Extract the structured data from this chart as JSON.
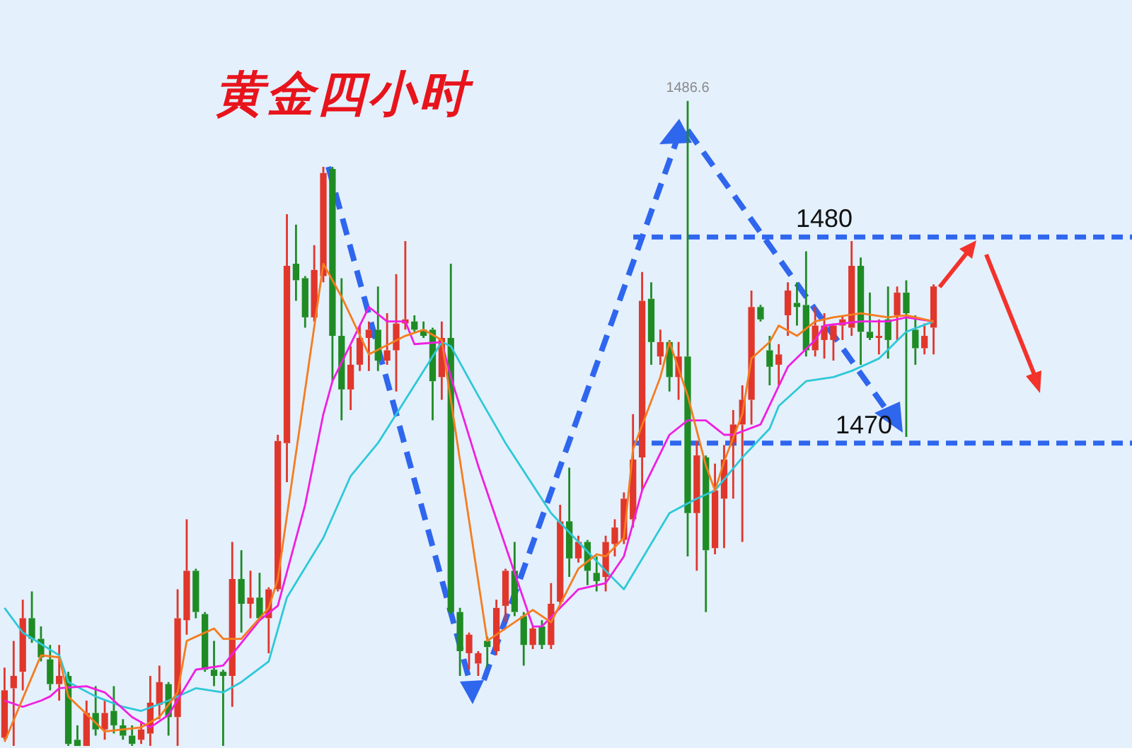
{
  "chart_data": {
    "type": "candlestick",
    "title": "黄金四小时",
    "categories": [
      null,
      null,
      null,
      null,
      null,
      null,
      null,
      null,
      null,
      null,
      null,
      null,
      null,
      null,
      null,
      null,
      null,
      null,
      null,
      null,
      null,
      null,
      null,
      null,
      null,
      null,
      null,
      null,
      null,
      null,
      null,
      null,
      null,
      null,
      null,
      null,
      null,
      null,
      null,
      null,
      null,
      null,
      null,
      null,
      null,
      null,
      null,
      null,
      null,
      null,
      null,
      null,
      null,
      null,
      null,
      null,
      null,
      null,
      null,
      null,
      null,
      null,
      null,
      null,
      null,
      null,
      null,
      null,
      null,
      null,
      null,
      null,
      null,
      null,
      null,
      null,
      null,
      null,
      null,
      null,
      null,
      null,
      null,
      null,
      null,
      null,
      null,
      null,
      null,
      null,
      null,
      null,
      null,
      null,
      null,
      null,
      null,
      null,
      null,
      null,
      null,
      null,
      null
    ],
    "ohlc": [
      [
        1455.7,
        1459.1,
        1455.6,
        1458.0
      ],
      [
        1458.1,
        1460.4,
        1455.3,
        1458.7
      ],
      [
        1458.9,
        1462.4,
        1458.0,
        1461.5
      ],
      [
        1461.5,
        1462.8,
        1460.3,
        1460.5
      ],
      [
        1460.5,
        1461.1,
        1459.4,
        1459.6
      ],
      [
        1459.5,
        1460.2,
        1458.0,
        1458.3
      ],
      [
        1458.3,
        1460.2,
        1457.5,
        1458.7
      ],
      [
        1458.7,
        1458.9,
        1455.3,
        1455.4
      ],
      [
        1455.6,
        1456.3,
        1455.3,
        1455.3
      ],
      [
        1455.3,
        1457.5,
        1455.3,
        1456.9
      ],
      [
        1456.9,
        1458.2,
        1455.8,
        1456.1
      ],
      [
        1456.1,
        1457.5,
        1455.6,
        1456.9
      ],
      [
        1457.0,
        1458.2,
        1455.9,
        1456.3
      ],
      [
        1456.3,
        1456.6,
        1455.6,
        1455.8
      ],
      [
        1455.8,
        1456.3,
        1455.3,
        1455.4
      ],
      [
        1455.6,
        1456.5,
        1455.4,
        1456.1
      ],
      [
        1455.9,
        1458.7,
        1455.3,
        1457.4
      ],
      [
        1457.3,
        1459.2,
        1456.6,
        1458.4
      ],
      [
        1458.3,
        1458.4,
        1455.8,
        1456.7
      ],
      [
        1456.7,
        1462.9,
        1455.3,
        1461.5
      ],
      [
        1461.4,
        1466.3,
        1460.7,
        1463.8
      ],
      [
        1463.8,
        1463.9,
        1461.5,
        1461.8
      ],
      [
        1461.7,
        1461.8,
        1458.9,
        1459.0
      ],
      [
        1459.0,
        1460.4,
        1458.2,
        1458.7
      ],
      [
        1458.9,
        1459.0,
        1455.3,
        1458.7
      ],
      [
        1458.7,
        1465.2,
        1457.2,
        1463.4
      ],
      [
        1463.4,
        1464.8,
        1460.8,
        1462.2
      ],
      [
        1462.2,
        1463.8,
        1461.5,
        1462.5
      ],
      [
        1462.5,
        1463.7,
        1461.4,
        1461.5
      ],
      [
        1461.5,
        1463.0,
        1459.8,
        1462.9
      ],
      [
        1462.9,
        1470.4,
        1462.8,
        1470.1
      ],
      [
        1470.0,
        1481.1,
        1468.1,
        1478.6
      ],
      [
        1478.7,
        1480.6,
        1476.9,
        1477.9
      ],
      [
        1478.0,
        1478.1,
        1475.6,
        1476.1
      ],
      [
        1476.1,
        1479.6,
        1475.9,
        1478.4
      ],
      [
        1478.1,
        1483.4,
        1477.8,
        1483.1
      ],
      [
        1483.3,
        1483.4,
        1473.0,
        1475.2
      ],
      [
        1475.2,
        1478.0,
        1471.1,
        1472.6
      ],
      [
        1472.6,
        1474.7,
        1471.6,
        1473.8
      ],
      [
        1473.8,
        1475.7,
        1473.5,
        1475.1
      ],
      [
        1475.1,
        1475.9,
        1473.5,
        1475.5
      ],
      [
        1475.5,
        1477.6,
        1473.5,
        1474.0
      ],
      [
        1474.0,
        1476.3,
        1473.8,
        1474.5
      ],
      [
        1474.5,
        1478.2,
        1472.5,
        1475.8
      ],
      [
        1475.8,
        1479.8,
        1475.5,
        1476.0
      ],
      [
        1475.9,
        1476.2,
        1475.4,
        1475.5
      ],
      [
        1475.5,
        1475.9,
        1475.1,
        1475.2
      ],
      [
        1475.5,
        1475.6,
        1471.1,
        1473.0
      ],
      [
        1473.2,
        1475.9,
        1472.1,
        1475.1
      ],
      [
        1475.1,
        1478.7,
        1461.7,
        1461.8
      ],
      [
        1461.8,
        1462.0,
        1458.7,
        1459.9
      ],
      [
        1459.8,
        1460.8,
        1459.0,
        1460.7
      ],
      [
        1459.3,
        1459.9,
        1458.7,
        1459.8
      ],
      [
        1460.4,
        1460.6,
        1459.1,
        1460.1
      ],
      [
        1459.9,
        1462.4,
        1459.7,
        1462.0
      ],
      [
        1462.1,
        1463.9,
        1461.3,
        1463.8
      ],
      [
        1463.8,
        1465.2,
        1461.6,
        1461.8
      ],
      [
        1461.6,
        1461.8,
        1459.2,
        1460.2
      ],
      [
        1460.2,
        1461.1,
        1460.0,
        1461.0
      ],
      [
        1461.1,
        1461.4,
        1460.0,
        1460.2
      ],
      [
        1460.2,
        1463.2,
        1460.0,
        1462.2
      ],
      [
        1462.3,
        1467.0,
        1462.2,
        1466.2
      ],
      [
        1466.2,
        1468.8,
        1463.5,
        1464.4
      ],
      [
        1464.4,
        1465.5,
        1464.2,
        1465.2
      ],
      [
        1465.2,
        1465.3,
        1463.1,
        1463.8
      ],
      [
        1463.7,
        1464.5,
        1462.8,
        1463.3
      ],
      [
        1463.5,
        1465.5,
        1462.8,
        1465.2
      ],
      [
        1465.1,
        1466.3,
        1464.5,
        1465.9
      ],
      [
        1465.3,
        1467.6,
        1465.1,
        1467.3
      ],
      [
        1466.3,
        1471.4,
        1465.9,
        1469.2
      ],
      [
        1469.3,
        1478.3,
        1467.7,
        1476.9
      ],
      [
        1477.0,
        1477.8,
        1473.8,
        1474.9
      ],
      [
        1474.2,
        1475.5,
        1473.8,
        1474.9
      ],
      [
        1474.9,
        1475.0,
        1472.5,
        1473.2
      ],
      [
        1473.2,
        1474.9,
        1472.1,
        1474.2
      ],
      [
        1474.2,
        1486.6,
        1464.5,
        1466.6
      ],
      [
        1466.6,
        1470.1,
        1463.8,
        1469.4
      ],
      [
        1469.3,
        1469.4,
        1461.8,
        1464.8
      ],
      [
        1464.9,
        1469.0,
        1464.6,
        1467.7
      ],
      [
        1467.3,
        1469.9,
        1464.9,
        1469.2
      ],
      [
        1470.0,
        1471.6,
        1467.3,
        1470.9
      ],
      [
        1470.9,
        1472.8,
        1465.2,
        1472.1
      ],
      [
        1472.1,
        1477.4,
        1470.9,
        1476.6
      ],
      [
        1476.6,
        1476.7,
        1475.9,
        1476.0
      ],
      [
        1474.5,
        1475.2,
        1472.8,
        1473.7
      ],
      [
        1473.8,
        1474.8,
        1472.8,
        1474.3
      ],
      [
        1476.2,
        1477.8,
        1475.2,
        1477.4
      ],
      [
        1476.8,
        1477.8,
        1475.7,
        1476.6
      ],
      [
        1476.7,
        1479.3,
        1474.2,
        1474.5
      ],
      [
        1474.5,
        1476.6,
        1474.2,
        1475.7
      ],
      [
        1475.0,
        1476.3,
        1474.1,
        1475.7
      ],
      [
        1475.0,
        1475.8,
        1474.0,
        1475.7
      ],
      [
        1475.7,
        1476.2,
        1475.0,
        1476.0
      ],
      [
        1475.6,
        1479.8,
        1475.2,
        1478.6
      ],
      [
        1478.6,
        1479.0,
        1473.8,
        1475.4
      ],
      [
        1475.4,
        1477.3,
        1475.0,
        1475.1
      ],
      [
        1475.1,
        1476.0,
        1474.3,
        1475.2
      ],
      [
        1476.0,
        1477.6,
        1474.1,
        1475.0
      ],
      [
        1476.2,
        1477.6,
        1475.0,
        1477.3
      ],
      [
        1477.3,
        1477.9,
        1470.3,
        1476.3
      ],
      [
        1475.5,
        1476.2,
        1473.8,
        1474.6
      ],
      [
        1474.6,
        1475.8,
        1474.3,
        1475.2
      ],
      [
        1475.6,
        1477.7,
        1474.3,
        1477.6
      ]
    ],
    "colors": [
      "#e0362b",
      "#e0362b",
      "#e0362b",
      "#1f8b24",
      "#1f8b24",
      "#1f8b24",
      "#e0362b",
      "#1f8b24",
      "#1f8b24",
      "#e0362b",
      "#1f8b24",
      "#e0362b",
      "#1f8b24",
      "#1f8b24",
      "#1f8b24",
      "#e0362b",
      "#e0362b",
      "#e0362b",
      "#1f8b24",
      "#e0362b",
      "#e0362b",
      "#1f8b24",
      "#1f8b24",
      "#1f8b24",
      "#1f8b24",
      "#e0362b",
      "#1f8b24",
      "#e0362b",
      "#1f8b24",
      "#e0362b",
      "#e0362b",
      "#e0362b",
      "#1f8b24",
      "#1f8b24",
      "#e0362b",
      "#e0362b",
      "#1f8b24",
      "#1f8b24",
      "#e0362b",
      "#e0362b",
      "#e0362b",
      "#1f8b24",
      "#e0362b",
      "#e0362b",
      "#e0362b",
      "#1f8b24",
      "#1f8b24",
      "#1f8b24",
      "#e0362b",
      "#1f8b24",
      "#1f8b24",
      "#e0362b",
      "#e0362b",
      "#1f8b24",
      "#e0362b",
      "#e0362b",
      "#1f8b24",
      "#1f8b24",
      "#e0362b",
      "#1f8b24",
      "#e0362b",
      "#e0362b",
      "#1f8b24",
      "#e0362b",
      "#1f8b24",
      "#1f8b24",
      "#e0362b",
      "#e0362b",
      "#e0362b",
      "#e0362b",
      "#e0362b",
      "#1f8b24",
      "#e0362b",
      "#1f8b24",
      "#e0362b",
      "#1f8b24",
      "#e0362b",
      "#1f8b24",
      "#e0362b",
      "#e0362b",
      "#e0362b",
      "#e0362b",
      "#e0362b",
      "#1f8b24",
      "#1f8b24",
      "#e0362b",
      "#e0362b",
      "#1f8b24",
      "#1f8b24",
      "#e0362b",
      "#e0362b",
      "#e0362b",
      "#e0362b",
      "#e0362b",
      "#1f8b24",
      "#1f8b24",
      "#e0362b",
      "#1f8b24",
      "#e0362b",
      "#1f8b24",
      "#1f8b24",
      "#e0362b",
      "#e0362b"
    ],
    "series": [
      {
        "type": "line",
        "color": "#f57c1f",
        "values": [
          1455.5,
          null,
          null,
          null,
          1459.7,
          null,
          1459.6,
          1457.7,
          null,
          null,
          null,
          1456.0,
          null,
          null,
          null,
          1456.2,
          null,
          1456.7,
          null,
          1457.9,
          1460.4,
          1460.6,
          null,
          1461.0,
          1460.5,
          null,
          1460.5,
          null,
          null,
          1462.0,
          1463.4,
          null,
          null,
          null,
          null,
          1478.7,
          null,
          1477.1,
          null,
          null,
          1474.3,
          null,
          null,
          null,
          1475.2,
          null,
          1475.5,
          null,
          1475.0,
          null,
          null,
          null,
          null,
          1460.4,
          null,
          null,
          null,
          1461.6,
          1461.9,
          null,
          1461.3,
          null,
          null,
          1463.9,
          null,
          1464.6,
          1464.5,
          null,
          1465.4,
          1469.7,
          null,
          null,
          1473.2,
          1474.9,
          null,
          1472.3,
          null,
          1468.9,
          1467.7,
          1469.1,
          null,
          1471.4,
          1474.1,
          null,
          1474.9,
          1475.7,
          null,
          1475.2,
          null,
          1475.9,
          null,
          1476.1,
          null,
          null,
          1476.3,
          null,
          null,
          1476.1,
          null,
          1476.2,
          null,
          null,
          1475.9
        ]
      },
      {
        "type": "line",
        "color": "#f01ee0",
        "values": [
          1457.5,
          null,
          1457.2,
          null,
          1457.5,
          1457.7,
          1458.1,
          null,
          null,
          1458.2,
          null,
          1457.9,
          null,
          null,
          1456.7,
          null,
          1456.2,
          null,
          1456.8,
          null,
          null,
          1459.0,
          null,
          null,
          1459.2,
          null,
          null,
          null,
          1461.4,
          null,
          1462.1,
          null,
          null,
          1467.0,
          null,
          1471.4,
          1473.0,
          null,
          null,
          null,
          1476.6,
          null,
          1475.9,
          null,
          1475.9,
          1474.8,
          null,
          null,
          1474.9,
          1473.2,
          null,
          null,
          1468.9,
          null,
          null,
          null,
          null,
          null,
          1461.1,
          1461.1,
          null,
          null,
          null,
          1462.9,
          null,
          null,
          1463.2,
          null,
          1464.5,
          null,
          1467.7,
          null,
          null,
          1470.4,
          null,
          1471.1,
          null,
          1471.1,
          null,
          1470.4,
          1470.4,
          null,
          null,
          1470.9,
          null,
          null,
          1473.7,
          null,
          null,
          1475.0,
          1475.7,
          null,
          null,
          null,
          1475.9,
          null,
          null,
          1475.9,
          null,
          1476.1,
          null,
          null,
          1475.9
        ]
      },
      {
        "type": "line",
        "color": "#2ec8d8",
        "values": [
          1462.0,
          null,
          1460.8,
          null,
          null,
          null,
          1459.7,
          1458.4,
          null,
          null,
          1457.7,
          null,
          null,
          1457.2,
          null,
          1457.0,
          null,
          null,
          1457.5,
          null,
          null,
          1458.1,
          null,
          null,
          1457.9,
          null,
          1458.4,
          null,
          null,
          1459.4,
          null,
          1462.5,
          null,
          null,
          null,
          1465.4,
          null,
          null,
          1468.4,
          null,
          null,
          1470.0,
          null,
          null,
          1472.1,
          null,
          null,
          null,
          1474.9,
          1474.7,
          null,
          null,
          1472.3,
          null,
          null,
          1470.0,
          null,
          null,
          null,
          null,
          1466.6,
          null,
          null,
          1465.2,
          null,
          null,
          1463.8,
          null,
          1462.9,
          null,
          null,
          null,
          null,
          1466.6,
          null,
          null,
          1467.3,
          null,
          1467.7,
          null,
          null,
          1469.3,
          null,
          null,
          1470.7,
          1471.8,
          null,
          null,
          1473.0,
          null,
          null,
          1473.2,
          null,
          1473.5,
          null,
          null,
          1474.1,
          null,
          null,
          1475.4,
          null,
          null,
          1475.9
        ]
      }
    ],
    "ylim": [
      1455.2,
      1491.5
    ],
    "tick_labels": false,
    "legend": false,
    "grid": false,
    "ref_lines": [
      {
        "axis": "y",
        "value": 1480,
        "label": "1480",
        "color": "#2f66ee",
        "line_style": "dashed"
      },
      {
        "axis": "y",
        "value": 1470,
        "label": "1470",
        "color": "#2f66ee",
        "line_style": "dashed"
      }
    ],
    "annotations": [
      {
        "text": "1486.6",
        "y": 1486.6
      }
    ]
  }
}
